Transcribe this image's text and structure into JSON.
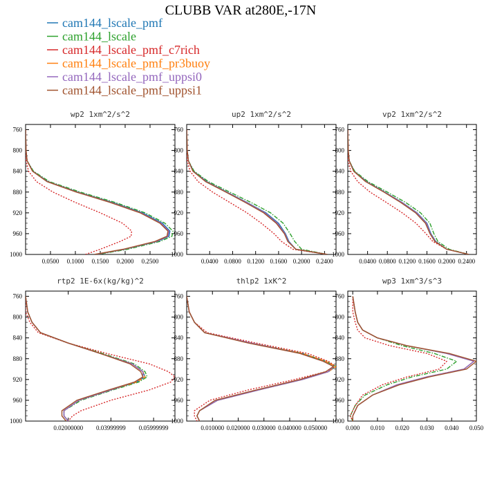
{
  "title": "CLUBB VAR at280E,-17N",
  "legend": [
    {
      "name": "cam144_lscale_pmf",
      "color": "#1f77b4",
      "dash": "solid"
    },
    {
      "name": "cam144_lscale",
      "color": "#2ca02c",
      "dash": "dashdot"
    },
    {
      "name": "cam144_lscale_pmf_c7rich",
      "color": "#d62728",
      "dash": "dotted"
    },
    {
      "name": "cam144_lscale_pmf_pr3buoy",
      "color": "#ff7f0e",
      "dash": "dashed"
    },
    {
      "name": "cam144_lscale_pmf_uppsi0",
      "color": "#9467bd",
      "dash": "solid"
    },
    {
      "name": "cam144_lscale_pmf_uppsi1",
      "color": "#a0522d",
      "dash": "solid"
    }
  ],
  "chart_data": [
    {
      "type": "line",
      "title": "wp2   1xm^2/s^2",
      "xlim": [
        0.0,
        0.3
      ],
      "xticks": [
        0.05,
        0.1,
        0.15,
        0.2,
        0.25
      ],
      "xtick_labels": [
        "0.0500",
        "0.1000",
        "0.1500",
        "0.2000",
        "0.2500"
      ],
      "ylim": [
        750,
        1000
      ],
      "yticks": [
        760,
        800,
        840,
        880,
        920,
        960,
        1000
      ],
      "y": [
        760,
        800,
        820,
        840,
        860,
        880,
        900,
        920,
        940,
        955,
        965,
        975,
        990,
        1000
      ],
      "series": [
        {
          "values": [
            0.0,
            0.001,
            0.003,
            0.015,
            0.045,
            0.105,
            0.175,
            0.235,
            0.275,
            0.29,
            0.288,
            0.265,
            0.2,
            0.14
          ]
        },
        {
          "values": [
            0.0,
            0.001,
            0.003,
            0.016,
            0.048,
            0.11,
            0.18,
            0.24,
            0.28,
            0.296,
            0.294,
            0.27,
            0.205,
            0.145
          ]
        },
        {
          "values": [
            0.0,
            0.0,
            0.001,
            0.006,
            0.022,
            0.055,
            0.1,
            0.15,
            0.195,
            0.213,
            0.212,
            0.19,
            0.15,
            0.12
          ]
        },
        {
          "values": [
            0.0,
            0.001,
            0.003,
            0.014,
            0.044,
            0.103,
            0.172,
            0.232,
            0.272,
            0.287,
            0.286,
            0.262,
            0.198,
            0.14
          ]
        },
        {
          "values": [
            0.0,
            0.001,
            0.003,
            0.014,
            0.044,
            0.103,
            0.172,
            0.232,
            0.272,
            0.288,
            0.286,
            0.263,
            0.198,
            0.14
          ]
        },
        {
          "values": [
            0.0,
            0.001,
            0.003,
            0.014,
            0.043,
            0.102,
            0.17,
            0.23,
            0.27,
            0.286,
            0.284,
            0.26,
            0.196,
            0.138
          ]
        }
      ]
    },
    {
      "type": "line",
      "title": "up2   1xm^2/s^2",
      "xlim": [
        0.0,
        0.26
      ],
      "xticks": [
        0.04,
        0.08,
        0.12,
        0.16,
        0.2,
        0.24
      ],
      "xtick_labels": [
        "0.0400",
        "0.0800",
        "0.1200",
        "0.1600",
        "0.2000",
        "0.2400"
      ],
      "ylim": [
        750,
        1000
      ],
      "yticks": [
        760,
        800,
        840,
        880,
        920,
        960,
        1000
      ],
      "y": [
        760,
        800,
        820,
        840,
        860,
        880,
        900,
        920,
        940,
        960,
        975,
        990,
        1000
      ],
      "series": [
        {
          "values": [
            0.0,
            0.001,
            0.003,
            0.012,
            0.035,
            0.07,
            0.105,
            0.138,
            0.16,
            0.172,
            0.178,
            0.19,
            0.245
          ]
        },
        {
          "values": [
            0.0,
            0.001,
            0.003,
            0.013,
            0.038,
            0.075,
            0.112,
            0.146,
            0.168,
            0.18,
            0.188,
            0.2,
            0.245
          ]
        },
        {
          "values": [
            0.0,
            0.0,
            0.001,
            0.006,
            0.02,
            0.045,
            0.075,
            0.105,
            0.13,
            0.152,
            0.165,
            0.185,
            0.245
          ]
        },
        {
          "values": [
            0.0,
            0.001,
            0.003,
            0.011,
            0.034,
            0.069,
            0.104,
            0.136,
            0.158,
            0.171,
            0.177,
            0.19,
            0.245
          ]
        },
        {
          "values": [
            0.0,
            0.001,
            0.003,
            0.011,
            0.034,
            0.069,
            0.104,
            0.136,
            0.158,
            0.171,
            0.177,
            0.19,
            0.245
          ]
        },
        {
          "values": [
            0.0,
            0.001,
            0.003,
            0.011,
            0.033,
            0.068,
            0.102,
            0.134,
            0.156,
            0.17,
            0.176,
            0.19,
            0.245
          ]
        }
      ]
    },
    {
      "type": "line",
      "title": "vp2   1xm^2/s^2",
      "xlim": [
        0.0,
        0.26
      ],
      "xticks": [
        0.04,
        0.08,
        0.12,
        0.16,
        0.2,
        0.24
      ],
      "xtick_labels": [
        "0.0400",
        "0.0800",
        "0.1200",
        "0.1600",
        "0.2000",
        "0.2400"
      ],
      "ylim": [
        750,
        1000
      ],
      "yticks": [
        760,
        800,
        840,
        880,
        920,
        960,
        1000
      ],
      "y": [
        760,
        800,
        820,
        840,
        860,
        880,
        900,
        920,
        940,
        960,
        975,
        990,
        1000
      ],
      "series": [
        {
          "values": [
            0.0,
            0.001,
            0.003,
            0.013,
            0.038,
            0.075,
            0.11,
            0.14,
            0.16,
            0.168,
            0.178,
            0.2,
            0.245
          ]
        },
        {
          "values": [
            0.0,
            0.001,
            0.003,
            0.014,
            0.041,
            0.08,
            0.117,
            0.147,
            0.166,
            0.174,
            0.182,
            0.205,
            0.245
          ]
        },
        {
          "values": [
            0.0,
            0.0,
            0.001,
            0.006,
            0.02,
            0.045,
            0.078,
            0.11,
            0.138,
            0.158,
            0.172,
            0.2,
            0.245
          ]
        },
        {
          "values": [
            0.0,
            0.001,
            0.003,
            0.012,
            0.037,
            0.074,
            0.109,
            0.139,
            0.159,
            0.167,
            0.177,
            0.2,
            0.245
          ]
        },
        {
          "values": [
            0.0,
            0.001,
            0.003,
            0.012,
            0.037,
            0.074,
            0.109,
            0.139,
            0.159,
            0.167,
            0.177,
            0.2,
            0.245
          ]
        },
        {
          "values": [
            0.0,
            0.001,
            0.003,
            0.012,
            0.036,
            0.073,
            0.107,
            0.137,
            0.157,
            0.166,
            0.176,
            0.2,
            0.245
          ]
        }
      ]
    },
    {
      "type": "line",
      "title": "rtp2   1E-6x(kg/kg)^2",
      "xlim": [
        0.0,
        0.07
      ],
      "xticks": [
        0.02,
        0.04,
        0.06
      ],
      "xtick_labels": [
        "0.02000000",
        "0.03999999",
        "0.05999999"
      ],
      "ylim": [
        750,
        1000
      ],
      "yticks": [
        760,
        800,
        840,
        880,
        920,
        960,
        1000
      ],
      "y": [
        760,
        790,
        810,
        830,
        850,
        870,
        890,
        905,
        915,
        925,
        940,
        960,
        980,
        990,
        1000
      ],
      "series": [
        {
          "values": [
            0.0,
            0.001,
            0.003,
            0.007,
            0.02,
            0.035,
            0.05,
            0.055,
            0.056,
            0.052,
            0.04,
            0.025,
            0.018,
            0.018,
            0.02
          ]
        },
        {
          "values": [
            0.0,
            0.001,
            0.003,
            0.007,
            0.02,
            0.036,
            0.051,
            0.056,
            0.057,
            0.053,
            0.041,
            0.026,
            0.018,
            0.018,
            0.02
          ]
        },
        {
          "values": [
            0.0,
            0.0,
            0.002,
            0.006,
            0.02,
            0.038,
            0.058,
            0.067,
            0.07,
            0.068,
            0.058,
            0.04,
            0.026,
            0.022,
            0.02
          ]
        },
        {
          "values": [
            0.0,
            0.001,
            0.003,
            0.007,
            0.02,
            0.035,
            0.05,
            0.055,
            0.056,
            0.052,
            0.04,
            0.025,
            0.018,
            0.018,
            0.02
          ]
        },
        {
          "values": [
            0.0,
            0.001,
            0.003,
            0.007,
            0.02,
            0.035,
            0.05,
            0.055,
            0.055,
            0.051,
            0.04,
            0.025,
            0.018,
            0.018,
            0.02
          ]
        },
        {
          "values": [
            0.0,
            0.001,
            0.003,
            0.007,
            0.02,
            0.035,
            0.049,
            0.054,
            0.055,
            0.051,
            0.039,
            0.024,
            0.017,
            0.017,
            0.019
          ]
        }
      ]
    },
    {
      "type": "line",
      "title": "thlp2   1xK^2",
      "xlim": [
        0.0,
        0.058
      ],
      "xticks": [
        0.01,
        0.02,
        0.03,
        0.04,
        0.05
      ],
      "xtick_labels": [
        "0.010000",
        "0.020000",
        "0.030000",
        "0.040000",
        "0.050000"
      ],
      "ylim": [
        750,
        1000
      ],
      "yticks": [
        760,
        800,
        840,
        880,
        920,
        960,
        1000
      ],
      "y": [
        760,
        790,
        810,
        830,
        850,
        870,
        885,
        895,
        905,
        920,
        940,
        960,
        980,
        990,
        1000
      ],
      "series": [
        {
          "values": [
            0.0,
            0.001,
            0.003,
            0.007,
            0.025,
            0.045,
            0.054,
            0.058,
            0.055,
            0.045,
            0.028,
            0.012,
            0.005,
            0.004,
            0.005
          ]
        },
        {
          "values": [
            0.0,
            0.001,
            0.003,
            0.007,
            0.025,
            0.045,
            0.054,
            0.058,
            0.055,
            0.045,
            0.028,
            0.012,
            0.005,
            0.004,
            0.005
          ]
        },
        {
          "values": [
            0.0,
            0.001,
            0.003,
            0.008,
            0.027,
            0.047,
            0.055,
            0.058,
            0.054,
            0.042,
            0.024,
            0.009,
            0.003,
            0.003,
            0.004
          ]
        },
        {
          "values": [
            0.0,
            0.001,
            0.003,
            0.007,
            0.025,
            0.045,
            0.054,
            0.058,
            0.055,
            0.045,
            0.028,
            0.012,
            0.005,
            0.004,
            0.005
          ]
        },
        {
          "values": [
            0.0,
            0.001,
            0.003,
            0.007,
            0.025,
            0.044,
            0.053,
            0.057,
            0.055,
            0.045,
            0.028,
            0.012,
            0.005,
            0.004,
            0.005
          ]
        },
        {
          "values": [
            0.0,
            0.001,
            0.003,
            0.007,
            0.024,
            0.044,
            0.053,
            0.057,
            0.054,
            0.044,
            0.027,
            0.011,
            0.005,
            0.004,
            0.005
          ]
        }
      ]
    },
    {
      "type": "line",
      "title": "wp3   1xm^3/s^3",
      "xlim": [
        -0.002,
        0.05
      ],
      "xticks": [
        0.0,
        0.01,
        0.02,
        0.03,
        0.04,
        0.05
      ],
      "xtick_labels": [
        "0.000",
        "0.010",
        "0.020",
        "0.030",
        "0.040",
        "0.050"
      ],
      "ylim": [
        750,
        1000
      ],
      "yticks": [
        760,
        800,
        840,
        880,
        920,
        960,
        1000
      ],
      "y": [
        760,
        790,
        810,
        825,
        840,
        855,
        870,
        885,
        900,
        915,
        930,
        950,
        970,
        990,
        1000
      ],
      "series": [
        {
          "values": [
            0.0,
            0.001,
            0.002,
            0.004,
            0.01,
            0.022,
            0.038,
            0.049,
            0.045,
            0.03,
            0.018,
            0.008,
            0.002,
            0.0,
            0.0
          ]
        },
        {
          "values": [
            0.0,
            0.001,
            0.002,
            0.004,
            0.01,
            0.02,
            0.033,
            0.042,
            0.038,
            0.024,
            0.014,
            0.005,
            0.001,
            -0.001,
            0.0
          ]
        },
        {
          "values": [
            0.0,
            0.0,
            0.001,
            0.002,
            0.005,
            0.015,
            0.03,
            0.038,
            0.035,
            0.022,
            0.012,
            0.004,
            0.001,
            -0.001,
            0.0
          ]
        },
        {
          "values": [
            0.0,
            0.001,
            0.002,
            0.004,
            0.01,
            0.022,
            0.038,
            0.049,
            0.045,
            0.03,
            0.018,
            0.008,
            0.002,
            0.0,
            0.0
          ]
        },
        {
          "values": [
            0.0,
            0.001,
            0.002,
            0.004,
            0.01,
            0.022,
            0.038,
            0.049,
            0.045,
            0.03,
            0.018,
            0.008,
            0.002,
            0.0,
            0.0
          ]
        },
        {
          "values": [
            0.0,
            0.001,
            0.002,
            0.004,
            0.01,
            0.022,
            0.039,
            0.05,
            0.046,
            0.031,
            0.019,
            0.008,
            0.002,
            0.0,
            0.0
          ]
        }
      ]
    }
  ]
}
